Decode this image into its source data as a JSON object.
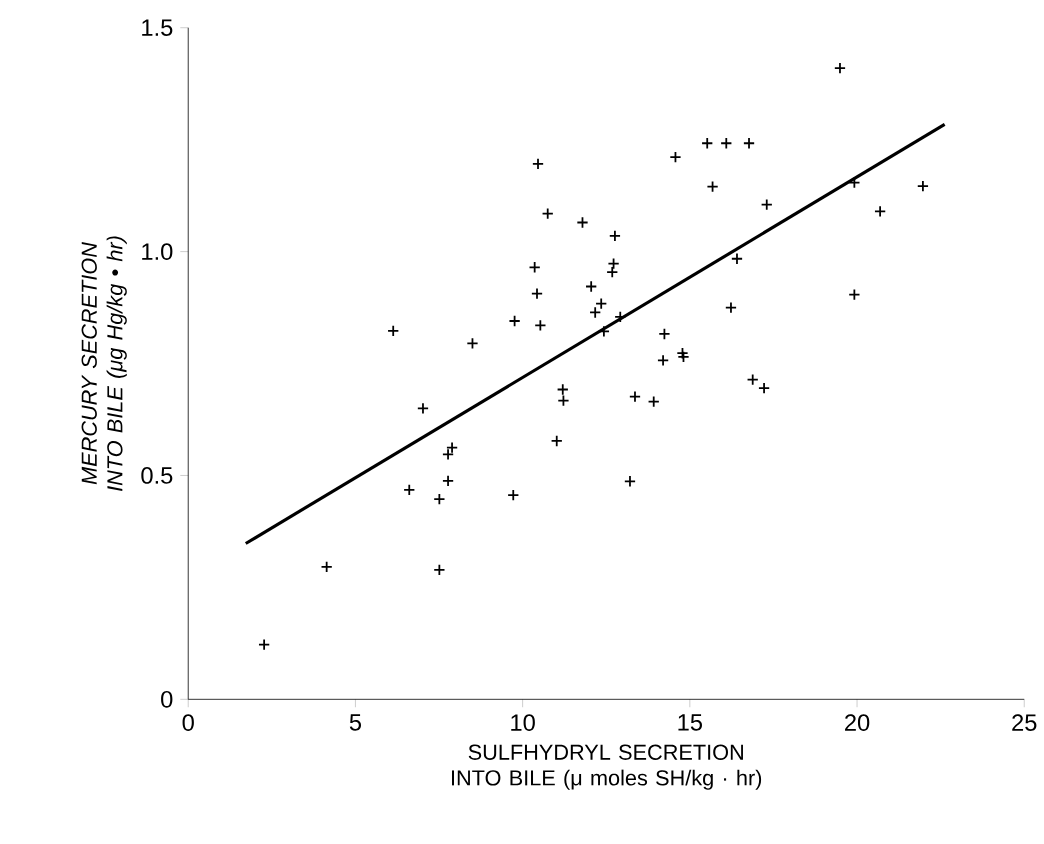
{
  "chart_data": {
    "type": "scatter",
    "marker": "cross",
    "xlabel": "SULFHYDRYL SECRETION INTO BILE (μ moles SH/kg · hr)",
    "ylabel": "MERCURY SECRETION INTO BILE (μg Hg/kg • hr)",
    "xlim": [
      0,
      25
    ],
    "xticks": [
      0,
      5,
      10,
      15,
      20,
      25
    ],
    "ylim": [
      0,
      1.5
    ],
    "yticks": [
      0,
      {
        "value": 0.5,
        "label": "0.5"
      },
      {
        "value": 1,
        "label": "1.0"
      },
      {
        "value": 1.5,
        "label": "1.5"
      }
    ],
    "grid": false,
    "series": [
      {
        "color": "#000000",
        "x": [
          10.46,
          10.75,
          10.36,
          10.43,
          9.76,
          10.53,
          6.13,
          8.5,
          7.02,
          11.2,
          11.22,
          7.89,
          7.77,
          11.02,
          6.61,
          7.77,
          7.51,
          9.72,
          4.14,
          7.51,
          2.27,
          14.57,
          15.52,
          16.09,
          16.77,
          15.68,
          17.3,
          19.92,
          20.69,
          21.97,
          11.79,
          12.76,
          12.72,
          12.68,
          12.05,
          12.35,
          12.17,
          12.92,
          12.43,
          16.41,
          16.23,
          19.92,
          14.24,
          14.2,
          14.78,
          14.81,
          16.88,
          17.22,
          13.36,
          13.92,
          13.21,
          19.49
        ],
        "values": [
          1.196,
          1.085,
          0.965,
          0.906,
          0.845,
          0.835,
          0.823,
          0.795,
          0.65,
          0.692,
          0.667,
          0.562,
          0.547,
          0.577,
          0.468,
          0.488,
          0.447,
          0.456,
          0.296,
          0.289,
          0.122,
          1.211,
          1.242,
          1.242,
          1.242,
          1.145,
          1.105,
          1.154,
          1.09,
          1.146,
          1.065,
          1.035,
          0.973,
          0.954,
          0.922,
          0.884,
          0.864,
          0.854,
          0.822,
          0.984,
          0.875,
          0.904,
          0.816,
          0.757,
          0.773,
          0.765,
          0.714,
          0.695,
          0.676,
          0.665,
          0.487,
          1.41
        ]
      },
      {
        "type": "line",
        "marker": "none",
        "color": "#000000",
        "x": [
          1.72,
          22.62
        ],
        "values": [
          0.348,
          1.284
        ]
      }
    ]
  }
}
